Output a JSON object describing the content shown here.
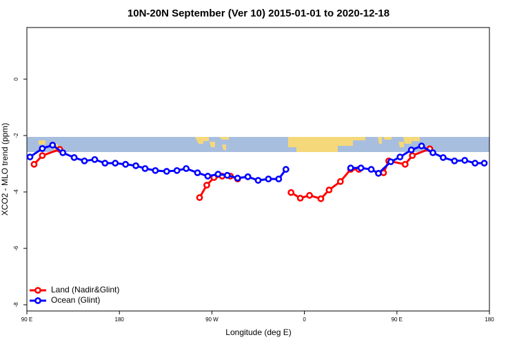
{
  "chart_data": {
    "type": "line",
    "title": "10N-20N September (Ver 10)   2015-01-01 to 2020-12-18",
    "x_label": "Longitude (deg E)",
    "y_label": "XCO2 - MLO trend (ppm)",
    "xlim": [
      90,
      540
    ],
    "ylim": [
      -8.22,
      1.83
    ],
    "xticks": [
      {
        "value": 90,
        "label": "90 E"
      },
      180,
      {
        "value": 270,
        "label": "90 W"
      },
      {
        "value": 360,
        "label": "0"
      },
      {
        "value": 450,
        "label": "90 E"
      },
      {
        "value": 540,
        "label": "180"
      }
    ],
    "yticks": [
      -8,
      -6,
      -4,
      -2,
      0
    ],
    "legend": "bottom-left",
    "series": [
      {
        "name": "Land (Nadir&Glint)",
        "color": "#ff0000",
        "x": [
          97,
          105,
          122,
          null,
          258,
          265,
          272,
          280,
          288,
          295,
          null,
          347,
          356,
          365,
          376,
          384,
          395,
          405,
          413,
          null,
          437,
          442,
          458,
          465,
          482
        ],
        "values": [
          -3.02,
          -2.71,
          -2.49,
          null,
          -4.2,
          -3.76,
          -3.49,
          -3.44,
          -3.44,
          -3.54,
          null,
          -4.02,
          -4.22,
          -4.12,
          -4.24,
          -3.93,
          -3.63,
          -3.2,
          -3.2,
          null,
          -3.32,
          -2.9,
          -3.02,
          -2.71,
          -2.47
        ]
      },
      {
        "name": "Ocean (Glint)",
        "color": "#0000ff",
        "x": [
          93,
          105,
          115,
          125,
          136,
          146,
          156,
          166,
          176,
          186,
          196,
          205,
          215,
          226,
          236,
          245,
          256,
          266,
          276,
          285,
          295,
          305,
          315,
          325,
          335,
          342,
          null,
          405,
          415,
          425,
          432,
          444,
          453,
          464,
          474,
          485,
          495,
          506,
          516,
          526,
          535
        ],
        "values": [
          -2.76,
          -2.46,
          -2.34,
          -2.61,
          -2.78,
          -2.9,
          -2.85,
          -2.98,
          -2.98,
          -3.02,
          -3.07,
          -3.17,
          -3.24,
          -3.27,
          -3.24,
          -3.17,
          -3.32,
          -3.44,
          -3.37,
          -3.41,
          -3.51,
          -3.46,
          -3.59,
          -3.54,
          -3.54,
          -3.2,
          null,
          -3.15,
          -3.15,
          -3.2,
          -3.34,
          -2.93,
          -2.76,
          -2.51,
          -2.37,
          -2.61,
          -2.78,
          -2.9,
          -2.88,
          -2.98,
          -2.98
        ]
      }
    ]
  }
}
